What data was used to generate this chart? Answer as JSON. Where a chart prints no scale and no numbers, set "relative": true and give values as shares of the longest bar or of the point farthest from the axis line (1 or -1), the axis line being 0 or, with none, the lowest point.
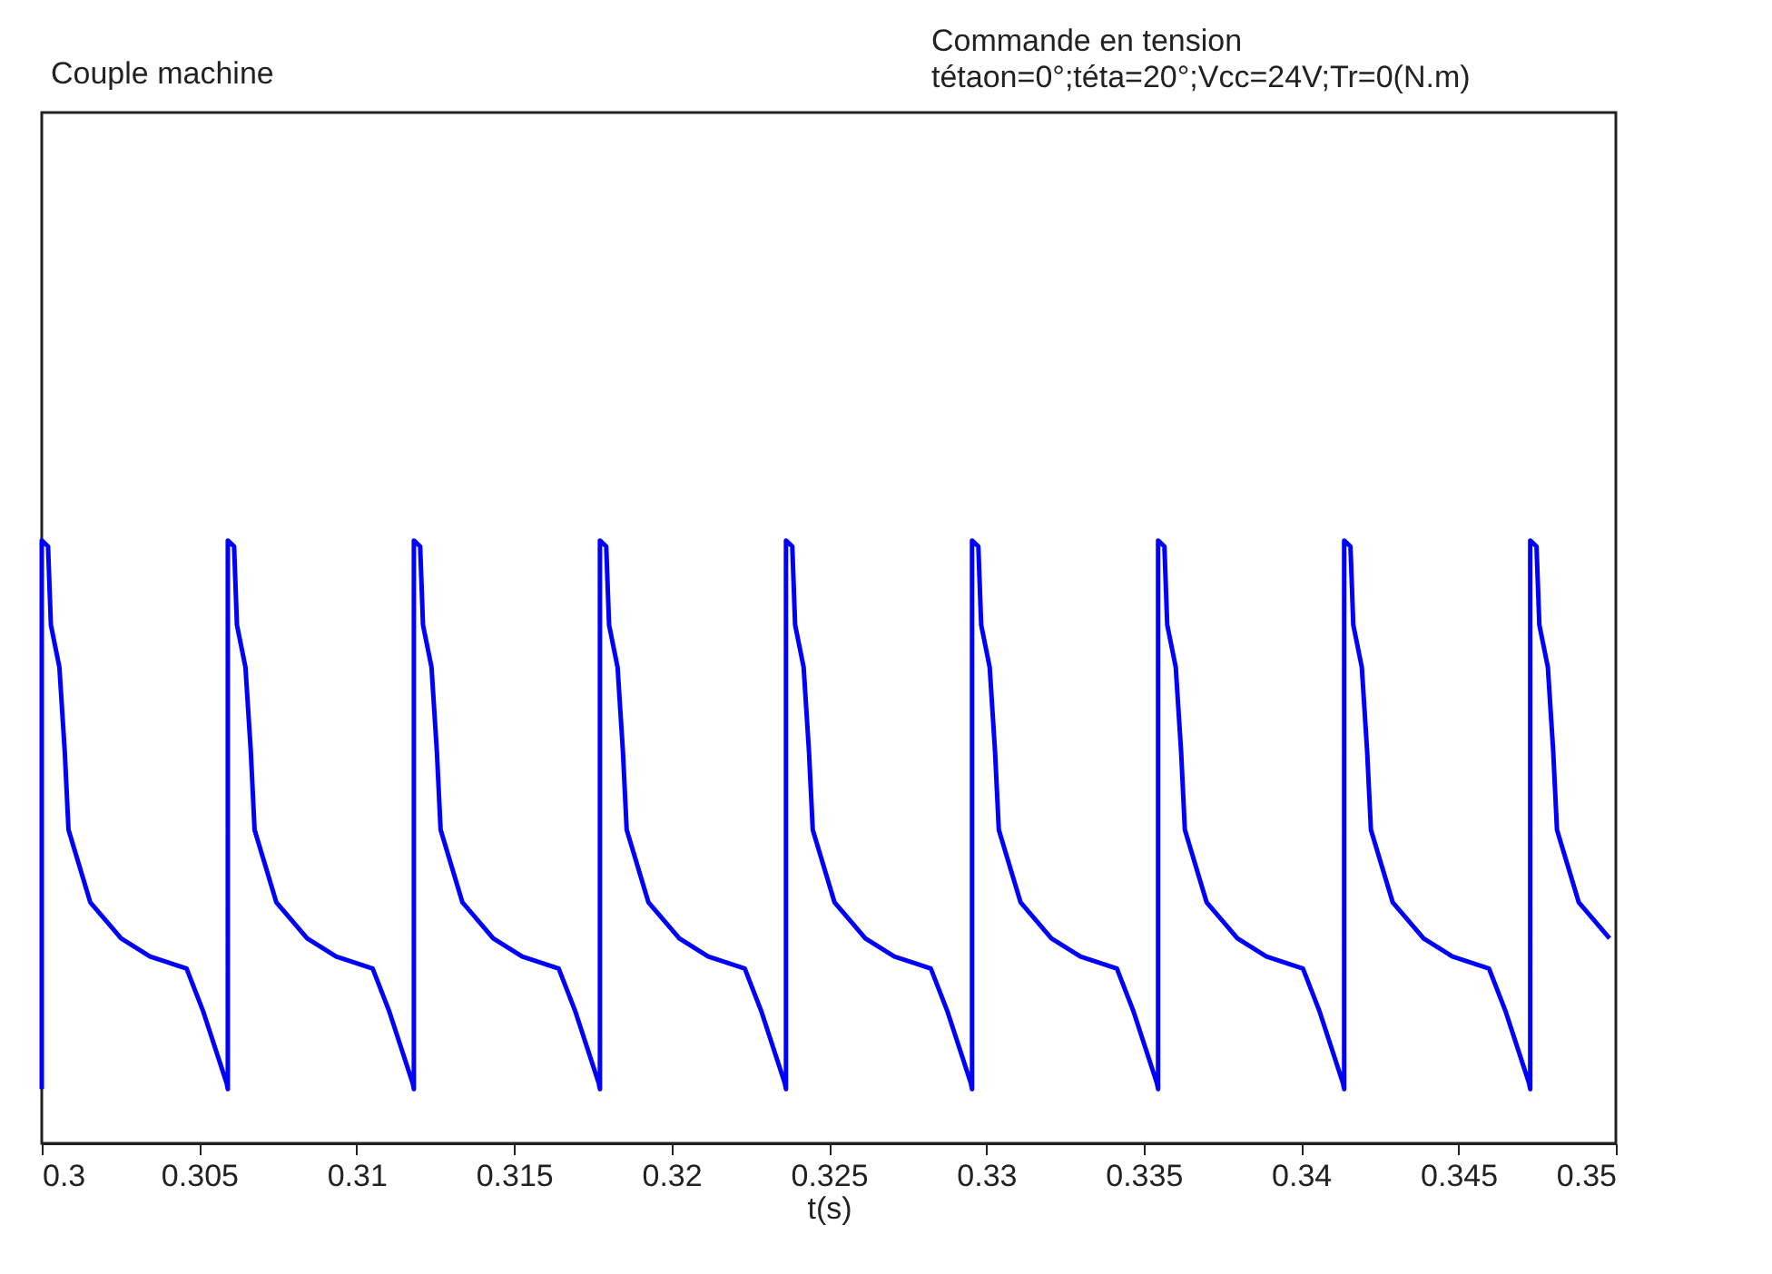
{
  "chart_data": {
    "type": "line",
    "title": "Couple machine",
    "annotations": [
      "Commande en tension",
      "tétaon=0°;téta=20°;Vcc=24V;Tr=0(N.m)"
    ],
    "xlabel": "t(s)",
    "relative": true,
    "xlim": [
      0.3,
      0.35
    ],
    "xticks": [
      0.3,
      0.305,
      0.31,
      0.315,
      0.32,
      0.325,
      0.33,
      0.335,
      0.34,
      0.345,
      0.35
    ],
    "grid": false,
    "series": [
      {
        "color": "#0000ff",
        "x": [
          0.3,
          0.3,
          0.3002,
          0.30029,
          0.30056,
          0.30073,
          0.30085,
          0.30154,
          0.30252,
          0.30344,
          0.3046,
          0.30512,
          0.30587,
          0.30591,
          0.30591,
          0.30611,
          0.3062,
          0.30647,
          0.30664,
          0.30676,
          0.30745,
          0.30843,
          0.30935,
          0.31051,
          0.31103,
          0.31178,
          0.31182,
          0.31182,
          0.31202,
          0.31211,
          0.31238,
          0.31255,
          0.31267,
          0.31336,
          0.31434,
          0.31526,
          0.31642,
          0.31694,
          0.31769,
          0.31773,
          0.31773,
          0.31793,
          0.31802,
          0.31829,
          0.31846,
          0.31858,
          0.31927,
          0.32025,
          0.32117,
          0.32233,
          0.32285,
          0.3236,
          0.32364,
          0.32364,
          0.32384,
          0.32393,
          0.3242,
          0.32437,
          0.32449,
          0.32518,
          0.32616,
          0.32708,
          0.32824,
          0.32876,
          0.32951,
          0.32955,
          0.32955,
          0.32975,
          0.32984,
          0.33011,
          0.33028,
          0.3304,
          0.33109,
          0.33207,
          0.33299,
          0.33415,
          0.33467,
          0.33542,
          0.33546,
          0.33546,
          0.33566,
          0.33575,
          0.33602,
          0.33619,
          0.33631,
          0.337,
          0.33798,
          0.3389,
          0.34006,
          0.34058,
          0.34133,
          0.34137,
          0.34137,
          0.34157,
          0.34166,
          0.34193,
          0.3421,
          0.34222,
          0.34291,
          0.34389,
          0.34481,
          0.34597,
          0.34649,
          0.34724,
          0.34728,
          0.34728,
          0.34748,
          0.34757,
          0.34784,
          0.34801,
          0.34813,
          0.34882,
          0.3498
        ],
        "values": [
          0.09,
          1,
          0.99,
          0.86,
          0.79,
          0.65,
          0.52,
          0.4,
          0.34,
          0.31,
          0.29,
          0.22,
          0.1,
          0.09,
          1,
          0.99,
          0.86,
          0.79,
          0.65,
          0.52,
          0.4,
          0.34,
          0.31,
          0.29,
          0.22,
          0.1,
          0.09,
          1,
          0.99,
          0.86,
          0.79,
          0.65,
          0.52,
          0.4,
          0.34,
          0.31,
          0.29,
          0.22,
          0.1,
          0.09,
          1,
          0.99,
          0.86,
          0.79,
          0.65,
          0.52,
          0.4,
          0.34,
          0.31,
          0.29,
          0.22,
          0.1,
          0.09,
          1,
          0.99,
          0.86,
          0.79,
          0.65,
          0.52,
          0.4,
          0.34,
          0.31,
          0.29,
          0.22,
          0.1,
          0.09,
          1,
          0.99,
          0.86,
          0.79,
          0.65,
          0.52,
          0.4,
          0.34,
          0.31,
          0.29,
          0.22,
          0.1,
          0.09,
          1,
          0.99,
          0.86,
          0.79,
          0.65,
          0.52,
          0.4,
          0.34,
          0.31,
          0.29,
          0.22,
          0.1,
          0.09,
          1,
          0.99,
          0.86,
          0.79,
          0.65,
          0.52,
          0.4,
          0.34,
          0.31,
          0.29,
          0.22,
          0.1,
          0.09,
          1,
          0.99,
          0.86,
          0.79,
          0.65,
          0.52,
          0.4,
          0.34
        ]
      }
    ]
  }
}
